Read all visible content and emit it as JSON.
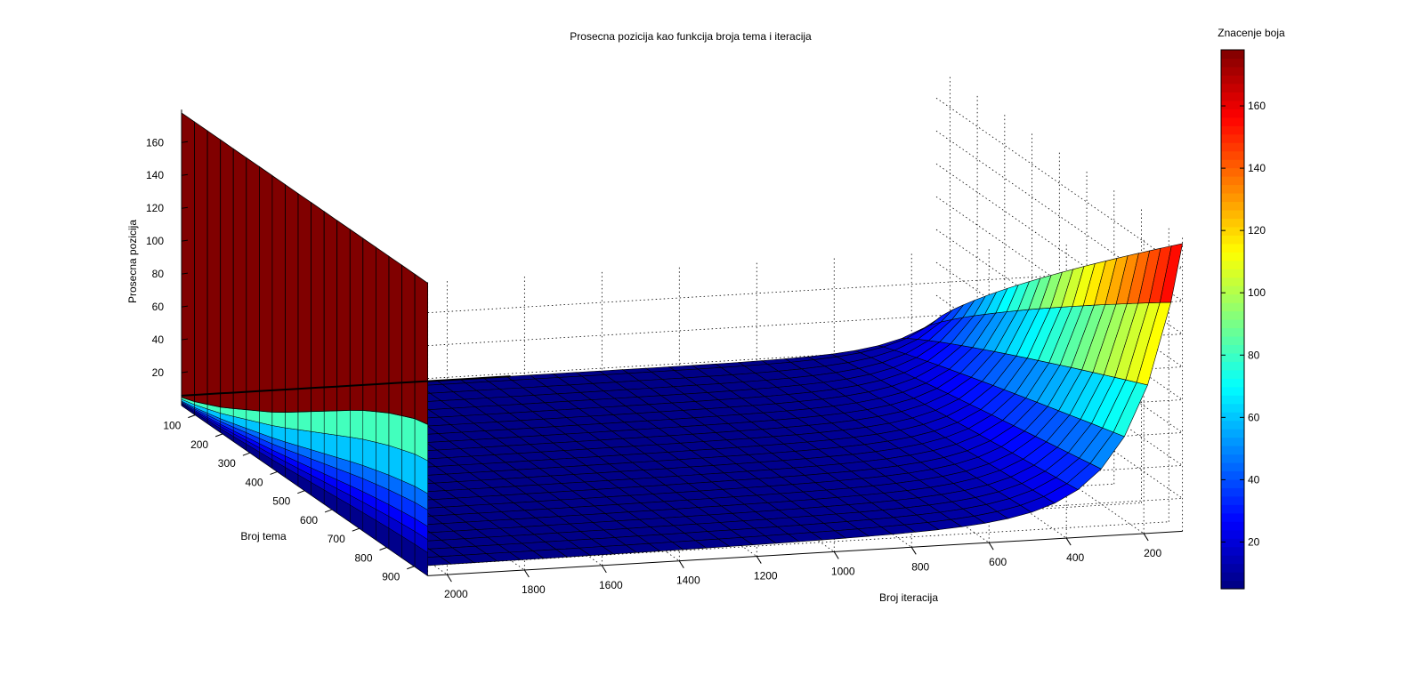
{
  "chart_data": {
    "type": "surface3d",
    "title": "Prosecna pozicija kao funkcija broja tema i iteracija",
    "xlabel": "Broj tema",
    "ylabel": "Broj iteracija",
    "zlabel": "Prosecna pozicija",
    "colorbar_label": "Znacenje boja",
    "colormap": "jet",
    "grid": true,
    "x_ticks": [
      100,
      200,
      300,
      400,
      500,
      600,
      700,
      800,
      900
    ],
    "y_ticks": [
      2000,
      1800,
      1600,
      1400,
      1200,
      1000,
      800,
      600,
      400,
      200
    ],
    "z_ticks": [
      20,
      40,
      60,
      80,
      100,
      120,
      140,
      160
    ],
    "colorbar_ticks": [
      20,
      40,
      60,
      80,
      100,
      120,
      140,
      160
    ],
    "xlim": [
      50,
      950
    ],
    "ylim": [
      100,
      2050
    ],
    "zlim": [
      0,
      180
    ],
    "clim": [
      5,
      178
    ],
    "wall_profile": {
      "x": [
        50,
        100,
        200,
        300,
        400,
        500,
        600,
        700,
        800,
        900,
        950
      ],
      "z": [
        5,
        8,
        16,
        26,
        36,
        48,
        60,
        72,
        82,
        90,
        92
      ]
    },
    "wall_top": 178
  }
}
